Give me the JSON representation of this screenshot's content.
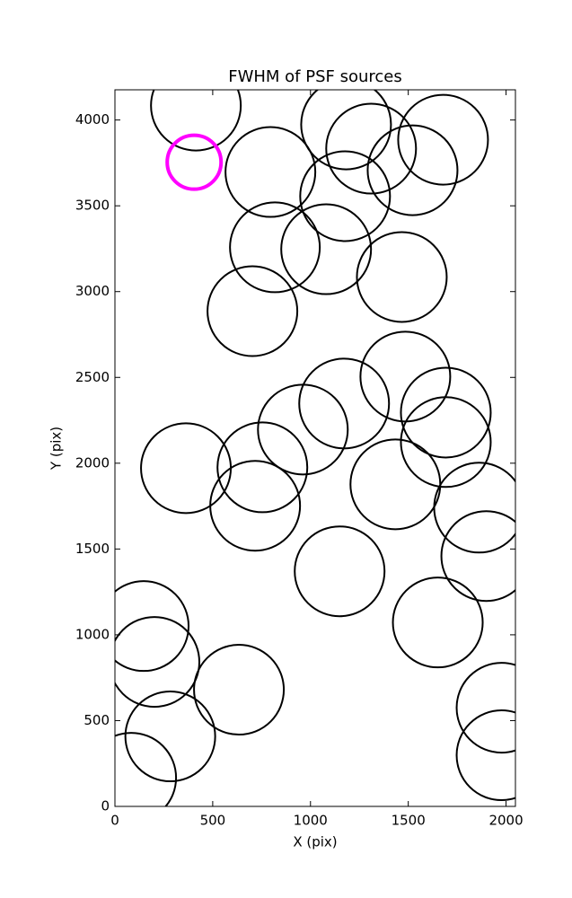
{
  "chart_data": {
    "type": "scatter",
    "title": "FWHM of PSF sources",
    "x_label": "X (pix)",
    "y_label": "Y (pix)",
    "xlim": [
      0,
      2048
    ],
    "ylim": [
      0,
      4176
    ],
    "xticks": [
      0,
      500,
      1000,
      1500,
      2000
    ],
    "yticks": [
      0,
      500,
      1000,
      1500,
      2000,
      2500,
      3000,
      3500,
      4000
    ],
    "series": [
      {
        "color": "#000000",
        "x": [
          414,
          1182,
          1310,
          1678,
          1522,
          795,
          1177,
          818,
          1080,
          1467,
          703,
          1485,
          1172,
          1692,
          961,
          1692,
          363,
          754,
          1434,
          1862,
          717,
          1899,
          1149,
          147,
          1651,
          202,
          634,
          283,
          1977,
          1977,
          83
        ],
        "values": [
          4084,
          3974,
          3833,
          3885,
          3707,
          3697,
          3556,
          3258,
          3247,
          3085,
          2886,
          2505,
          2348,
          2295,
          2196,
          2123,
          1971,
          1976,
          1877,
          1741,
          1752,
          1459,
          1370,
          1051,
          1072,
          842,
          680,
          408,
          575,
          298,
          167
        ]
      },
      {
        "color": "#ff00ff",
        "x": [
          405
        ],
        "values": [
          3754
        ]
      }
    ]
  }
}
